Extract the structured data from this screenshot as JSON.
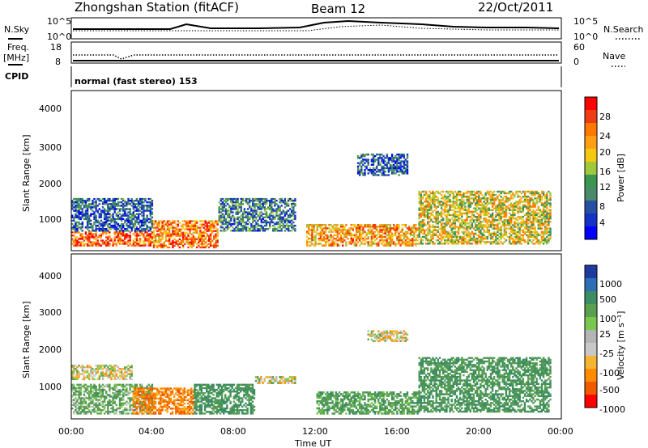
{
  "header": {
    "station": "Zhongshan Station (fitACF)",
    "beam": "Beam 12",
    "date": "22/Oct/2011"
  },
  "scan_panels": {
    "nsky_label": "N.Sky",
    "nsearch_label": "N.Search",
    "freq_label": "Freq.",
    "freq_unit": "[MHz]",
    "nave_label": "Nave",
    "cpid_label": "CPID",
    "cpid_value": "normal (fast stereo) 153",
    "noise_ticks_left": [
      "10^5",
      "10^0"
    ],
    "noise_ticks_right": [
      "10^5",
      "10^0"
    ],
    "freq_ticks": [
      "18",
      "8"
    ],
    "nave_ticks": [
      "60",
      "0"
    ]
  },
  "axes": {
    "xlabel": "Time UT",
    "x_ticks": [
      "00:00",
      "04:00",
      "08:00",
      "12:00",
      "16:00",
      "20:00",
      "00:00"
    ],
    "ylabel": "Slant Range [km]",
    "y_ticks": [
      "4000",
      "3000",
      "2000",
      "1000"
    ]
  },
  "power_colorbar": {
    "label": "Power [dB]",
    "ticks": [
      "28",
      "24",
      "20",
      "16",
      "12",
      "8",
      "4"
    ],
    "colors": [
      "#ff0000",
      "#f03c14",
      "#ff7800",
      "#ffa014",
      "#f5c814",
      "#a0c83c",
      "#3c9650",
      "#4a8a6c",
      "#2850a0",
      "#1432c8",
      "#0000ff"
    ]
  },
  "velocity_colorbar": {
    "label": "Velocity [m s⁻¹]",
    "ticks": [
      "1000",
      "500",
      "100",
      "25",
      "-25",
      "-100",
      "-500",
      "-1000"
    ],
    "colors": [
      "#1e3ca0",
      "#2e6eb4",
      "#3c8c64",
      "#5aa050",
      "#78c850",
      "#b4b4b4",
      "#c8c8c8",
      "#f5b432",
      "#ff8c00",
      "#f05a00",
      "#ff0000"
    ]
  },
  "chart_data": [
    {
      "type": "heatmap",
      "title": "Power",
      "x_range_hours": [
        0,
        24
      ],
      "y_range_km": [
        180,
        4500
      ],
      "regions": [
        {
          "t0": 0.0,
          "t1": 4.0,
          "r0": 300,
          "r1": 700,
          "value": 24
        },
        {
          "t0": 0.0,
          "t1": 4.0,
          "r0": 700,
          "r1": 1600,
          "value": 6
        },
        {
          "t0": 4.0,
          "t1": 7.2,
          "r0": 250,
          "r1": 1000,
          "value": 22
        },
        {
          "t0": 7.2,
          "t1": 11.0,
          "r0": 700,
          "r1": 1600,
          "value": 8
        },
        {
          "t0": 14.0,
          "t1": 16.5,
          "r0": 2200,
          "r1": 2800,
          "value": 6
        },
        {
          "t0": 11.5,
          "t1": 17.0,
          "r0": 300,
          "r1": 900,
          "value": 20
        },
        {
          "t0": 17.0,
          "t1": 23.5,
          "r0": 350,
          "r1": 1800,
          "value": 16
        }
      ]
    },
    {
      "type": "heatmap",
      "title": "Velocity",
      "x_range_hours": [
        0,
        24
      ],
      "y_range_km": [
        180,
        4500
      ],
      "regions": [
        {
          "t0": 0.0,
          "t1": 3.0,
          "r0": 1200,
          "r1": 1600,
          "value": 0
        },
        {
          "t0": 0.0,
          "t1": 4.0,
          "r0": 300,
          "r1": 1100,
          "value": 150
        },
        {
          "t0": 3.0,
          "t1": 6.0,
          "r0": 300,
          "r1": 1000,
          "value": -200
        },
        {
          "t0": 6.0,
          "t1": 9.0,
          "r0": 300,
          "r1": 1100,
          "value": 300
        },
        {
          "t0": 9.0,
          "t1": 11.0,
          "r0": 1100,
          "r1": 1300,
          "value": 0
        },
        {
          "t0": 14.5,
          "t1": 16.5,
          "r0": 2200,
          "r1": 2500,
          "value": 0
        },
        {
          "t0": 12.0,
          "t1": 17.0,
          "r0": 300,
          "r1": 900,
          "value": 200
        },
        {
          "t0": 17.0,
          "t1": 23.5,
          "r0": 350,
          "r1": 1800,
          "value": 250
        }
      ]
    }
  ]
}
